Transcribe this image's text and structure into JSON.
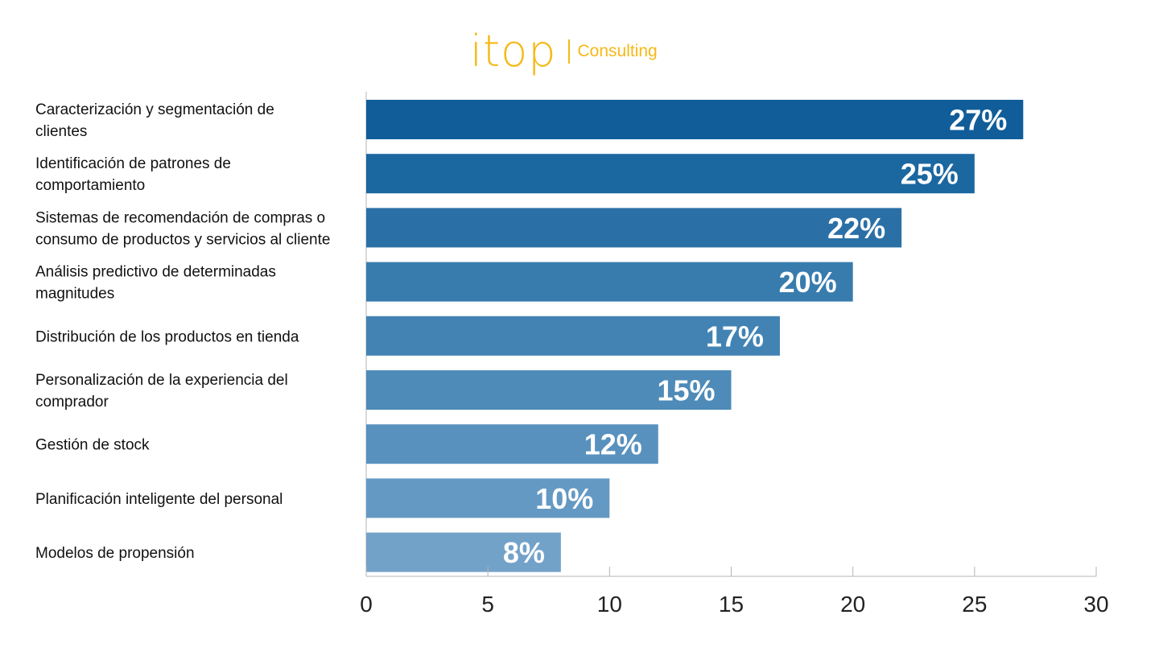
{
  "header": {
    "logo_word": "itop",
    "logo_sub": "Consulting"
  },
  "chart_data": {
    "type": "bar",
    "orientation": "horizontal",
    "categories": [
      [
        "Caracterización y segmentación de",
        "clientes"
      ],
      [
        "Identificación de patrones de",
        "comportamiento"
      ],
      [
        "Sistemas de recomendación de compras o",
        "consumo de productos y servicios al cliente"
      ],
      [
        "Análisis predictivo de determinadas",
        "magnitudes"
      ],
      [
        "Distribución de los productos en tienda"
      ],
      [
        "Personalización de la experiencia del",
        "comprador"
      ],
      [
        "Gestión de stock"
      ],
      [
        "Planificación inteligente del personal"
      ],
      [
        "Modelos de propensión"
      ]
    ],
    "values": [
      27,
      25,
      22,
      20,
      17,
      15,
      12,
      10,
      8
    ],
    "value_labels": [
      "27%",
      "25%",
      "22%",
      "20%",
      "17%",
      "15%",
      "12%",
      "10%",
      "8%"
    ],
    "bar_colors": [
      "#105d99",
      "#1b67a0",
      "#2a70a6",
      "#387cae",
      "#4283b3",
      "#4e8bb8",
      "#5991be",
      "#6499c3",
      "#73a2c9"
    ],
    "xlim": [
      0,
      30
    ],
    "xticks": [
      0,
      5,
      10,
      15,
      20,
      25,
      30
    ],
    "title": "",
    "xlabel": "",
    "ylabel": "",
    "grid": false,
    "legend": "none"
  }
}
